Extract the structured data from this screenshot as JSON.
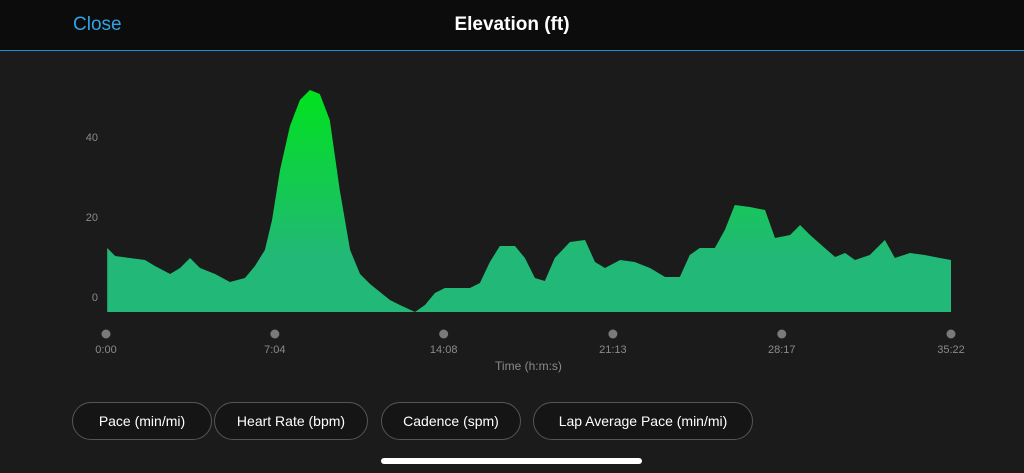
{
  "header": {
    "close": "Close",
    "title": "Elevation (ft)"
  },
  "chart_data": {
    "type": "area",
    "xlabel": "Time (h:m:s)",
    "x": [
      3,
      23,
      60,
      98,
      123,
      161,
      186,
      211,
      236,
      274,
      311,
      349,
      374,
      399,
      417,
      437,
      462,
      487,
      512,
      537,
      562,
      587,
      613,
      638,
      663,
      688,
      713,
      738,
      776,
      801,
      826,
      851,
      914,
      939,
      964,
      989,
      1027,
      1052,
      1077,
      1102,
      1127,
      1165,
      1203,
      1228,
      1253,
      1291,
      1328,
      1366,
      1404,
      1441,
      1466,
      1491,
      1529,
      1554,
      1579,
      1617,
      1655,
      1680,
      1718,
      1743,
      1768,
      1805,
      1831,
      1856,
      1881,
      1918,
      1956,
      1981,
      2019,
      2056,
      2094,
      2122
    ],
    "values": [
      12.5,
      10.5,
      10,
      9.5,
      8,
      6,
      7.5,
      10,
      7.5,
      6,
      4,
      5,
      8,
      12,
      19.5,
      32,
      43,
      49.5,
      52,
      51,
      44.5,
      27,
      12,
      6,
      3.5,
      1.5,
      -0.5,
      -1.75,
      -3.5,
      -1.75,
      1.25,
      2.5,
      2.5,
      3.75,
      9,
      13,
      13,
      10,
      5,
      4.25,
      10,
      14,
      14.5,
      9,
      7.5,
      9.5,
      9,
      7.5,
      5.25,
      5.25,
      10.75,
      12.5,
      12.5,
      17,
      23.25,
      22.75,
      22,
      15,
      15.75,
      18.25,
      15.75,
      12.5,
      10.25,
      11.25,
      9.5,
      10.75,
      14.5,
      10,
      11.25,
      10.75,
      10,
      9.5
    ],
    "color_top": "#00e31c",
    "color_bottom": "#22b877",
    "xlim": [
      0,
      2122
    ],
    "xticks": [
      {
        "value": 0,
        "label": "0:00"
      },
      {
        "value": 424,
        "label": "7:04"
      },
      {
        "value": 848,
        "label": "14:08"
      },
      {
        "value": 1273,
        "label": "21:13"
      },
      {
        "value": 1697,
        "label": "28:17"
      },
      {
        "value": 2122,
        "label": "35:22"
      }
    ],
    "ylim": [
      -3.5,
      56
    ],
    "yticks": [
      0,
      20,
      40
    ]
  },
  "buttons": [
    "Pace (min/mi)",
    "Heart Rate (bpm)",
    "Cadence (spm)",
    "Lap Average Pace (min/mi)"
  ]
}
